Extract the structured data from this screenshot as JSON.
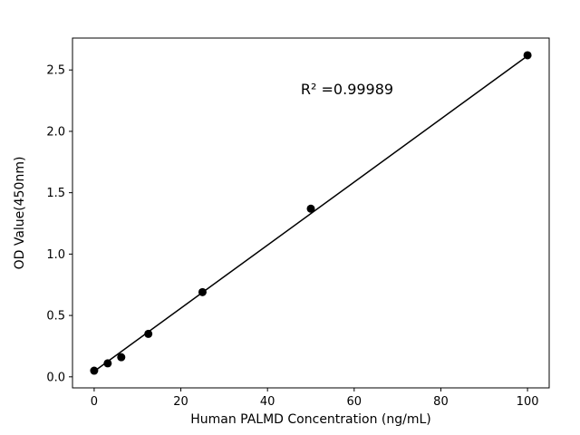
{
  "chart_data": {
    "type": "scatter",
    "title": "",
    "xlabel": "Human PALMD Concentration (ng/mL)",
    "ylabel": "OD Value(450nm)",
    "annotation": "R² =0.99989",
    "x": [
      0,
      3.125,
      6.25,
      12.5,
      25,
      50,
      100
    ],
    "y": [
      0.05,
      0.11,
      0.16,
      0.35,
      0.69,
      1.37,
      2.62
    ],
    "fit": {
      "slope": 0.0257,
      "intercept": 0.045,
      "fit_x_start": 0,
      "fit_x_end": 100
    },
    "xlim": [
      -5,
      105
    ],
    "ylim": [
      -0.09,
      2.76
    ],
    "x_ticks": [
      0,
      20,
      40,
      60,
      80,
      100
    ],
    "y_ticks": [
      0.0,
      0.5,
      1.0,
      1.5,
      2.0,
      2.5
    ],
    "y_tick_decimals": 1,
    "grid": false,
    "legend": "none",
    "marker_color": "#000000",
    "line_color": "#000000",
    "background_color": "#ffffff",
    "spine_color": "#000000"
  }
}
